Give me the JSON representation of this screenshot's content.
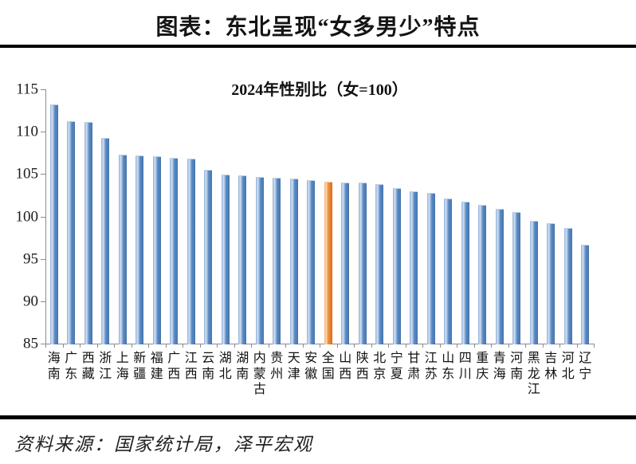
{
  "header": {
    "title": "图表：东北呈现“女多男少”特点"
  },
  "chart_data": {
    "type": "bar",
    "title": "2024年性别比（女=100）",
    "categories": [
      "海南",
      "广东",
      "西藏",
      "浙江",
      "上海",
      "新疆",
      "福建",
      "广西",
      "江西",
      "云南",
      "湖北",
      "湖南",
      "内蒙古",
      "贵州",
      "天津",
      "安徽",
      "全国",
      "山西",
      "陕西",
      "北京",
      "宁夏",
      "甘肃",
      "江苏",
      "山东",
      "四川",
      "重庆",
      "青海",
      "河南",
      "黑龙江",
      "吉林",
      "河北",
      "辽宁"
    ],
    "values": [
      113.2,
      111.2,
      111.1,
      109.3,
      107.3,
      107.2,
      107.1,
      106.9,
      106.8,
      105.5,
      104.9,
      104.8,
      104.7,
      104.6,
      104.5,
      104.3,
      104.1,
      104.0,
      104.0,
      103.8,
      103.3,
      103.0,
      102.8,
      102.1,
      101.7,
      101.4,
      100.9,
      100.5,
      99.5,
      99.2,
      98.6,
      96.7
    ],
    "highlight_category": "全国",
    "ylim": [
      85,
      115
    ],
    "yticks": [
      85,
      90,
      95,
      100,
      105,
      110,
      115
    ],
    "grid": false,
    "legend": "none",
    "xlabel": "",
    "ylabel": "",
    "colors": {
      "bar": "#4f81bd",
      "bar_highlight": "#e87722",
      "axis": "#8c8c8c"
    }
  },
  "footer": {
    "source": "资料来源：国家统计局，泽平宏观"
  }
}
